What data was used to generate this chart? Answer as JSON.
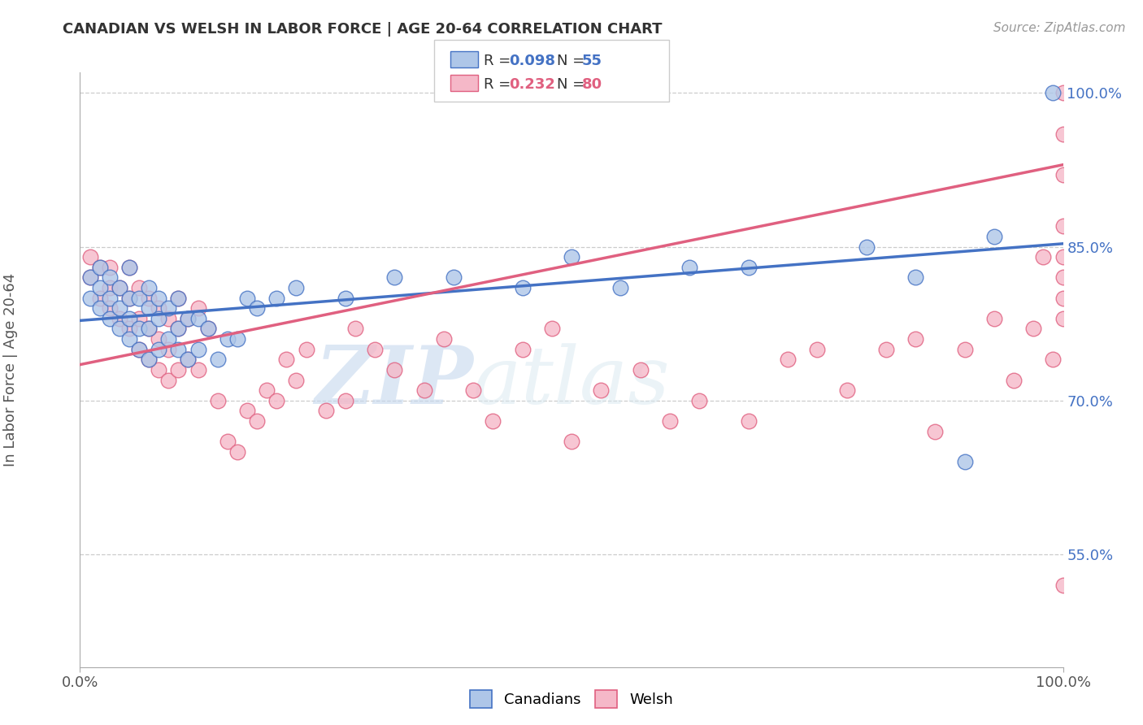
{
  "title": "CANADIAN VS WELSH IN LABOR FORCE | AGE 20-64 CORRELATION CHART",
  "source": "Source: ZipAtlas.com",
  "ylabel": "In Labor Force | Age 20-64",
  "xlim": [
    0,
    1
  ],
  "ylim": [
    0.44,
    1.02
  ],
  "ytick_positions": [
    0.55,
    0.7,
    0.85,
    1.0
  ],
  "ytick_labels": [
    "55.0%",
    "70.0%",
    "85.0%",
    "100.0%"
  ],
  "xtick_positions": [
    0.0,
    1.0
  ],
  "xtick_labels": [
    "0.0%",
    "100.0%"
  ],
  "canadian_color": "#aec6e8",
  "welsh_color": "#f5b8c8",
  "canadian_line_color": "#4472c4",
  "welsh_line_color": "#e06080",
  "canadian_R": 0.098,
  "canadian_N": 55,
  "welsh_R": 0.232,
  "welsh_N": 80,
  "watermark_zip": "ZIP",
  "watermark_atlas": "atlas",
  "background_color": "#ffffff",
  "grid_color": "#cccccc",
  "canadian_x": [
    0.01,
    0.01,
    0.02,
    0.02,
    0.02,
    0.03,
    0.03,
    0.03,
    0.04,
    0.04,
    0.04,
    0.05,
    0.05,
    0.05,
    0.05,
    0.06,
    0.06,
    0.06,
    0.07,
    0.07,
    0.07,
    0.07,
    0.08,
    0.08,
    0.08,
    0.09,
    0.09,
    0.1,
    0.1,
    0.1,
    0.11,
    0.11,
    0.12,
    0.12,
    0.13,
    0.14,
    0.15,
    0.16,
    0.17,
    0.18,
    0.2,
    0.22,
    0.27,
    0.32,
    0.38,
    0.45,
    0.5,
    0.55,
    0.62,
    0.68,
    0.8,
    0.85,
    0.9,
    0.93,
    0.99
  ],
  "canadian_y": [
    0.8,
    0.82,
    0.79,
    0.81,
    0.83,
    0.78,
    0.8,
    0.82,
    0.77,
    0.79,
    0.81,
    0.76,
    0.78,
    0.8,
    0.83,
    0.75,
    0.77,
    0.8,
    0.74,
    0.77,
    0.79,
    0.81,
    0.75,
    0.78,
    0.8,
    0.76,
    0.79,
    0.75,
    0.77,
    0.8,
    0.74,
    0.78,
    0.75,
    0.78,
    0.77,
    0.74,
    0.76,
    0.76,
    0.8,
    0.79,
    0.8,
    0.81,
    0.8,
    0.82,
    0.82,
    0.81,
    0.84,
    0.81,
    0.83,
    0.83,
    0.85,
    0.82,
    0.64,
    0.86,
    1.0
  ],
  "welsh_x": [
    0.01,
    0.01,
    0.02,
    0.02,
    0.03,
    0.03,
    0.03,
    0.04,
    0.04,
    0.05,
    0.05,
    0.05,
    0.06,
    0.06,
    0.06,
    0.07,
    0.07,
    0.07,
    0.08,
    0.08,
    0.08,
    0.09,
    0.09,
    0.09,
    0.1,
    0.1,
    0.1,
    0.11,
    0.11,
    0.12,
    0.12,
    0.13,
    0.14,
    0.15,
    0.16,
    0.17,
    0.18,
    0.19,
    0.2,
    0.21,
    0.22,
    0.23,
    0.25,
    0.27,
    0.28,
    0.3,
    0.32,
    0.35,
    0.37,
    0.4,
    0.42,
    0.45,
    0.48,
    0.5,
    0.53,
    0.57,
    0.6,
    0.63,
    0.68,
    0.72,
    0.75,
    0.78,
    0.82,
    0.85,
    0.87,
    0.9,
    0.93,
    0.95,
    0.97,
    0.98,
    0.99,
    1.0,
    1.0,
    1.0,
    1.0,
    1.0,
    1.0,
    1.0,
    1.0,
    1.0
  ],
  "welsh_y": [
    0.82,
    0.84,
    0.8,
    0.83,
    0.79,
    0.81,
    0.83,
    0.78,
    0.81,
    0.77,
    0.8,
    0.83,
    0.75,
    0.78,
    0.81,
    0.74,
    0.77,
    0.8,
    0.73,
    0.76,
    0.79,
    0.72,
    0.75,
    0.78,
    0.73,
    0.77,
    0.8,
    0.74,
    0.78,
    0.73,
    0.79,
    0.77,
    0.7,
    0.66,
    0.65,
    0.69,
    0.68,
    0.71,
    0.7,
    0.74,
    0.72,
    0.75,
    0.69,
    0.7,
    0.77,
    0.75,
    0.73,
    0.71,
    0.76,
    0.71,
    0.68,
    0.75,
    0.77,
    0.66,
    0.71,
    0.73,
    0.68,
    0.7,
    0.68,
    0.74,
    0.75,
    0.71,
    0.75,
    0.76,
    0.67,
    0.75,
    0.78,
    0.72,
    0.77,
    0.84,
    0.74,
    0.8,
    0.84,
    0.87,
    0.92,
    0.96,
    1.0,
    0.78,
    0.82,
    0.52
  ],
  "canadian_trend_x": [
    0.0,
    1.0
  ],
  "canadian_trend_y": [
    0.778,
    0.853
  ],
  "welsh_trend_x": [
    0.0,
    1.0
  ],
  "welsh_trend_y": [
    0.735,
    0.93
  ]
}
